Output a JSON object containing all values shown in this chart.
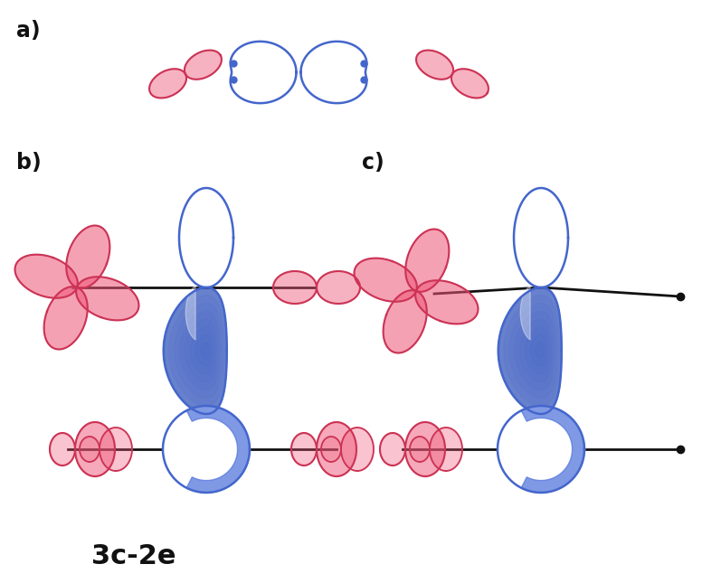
{
  "label_a": "a)",
  "label_b": "b)",
  "label_c": "c)",
  "label_3c2e": "3c-2e",
  "blue": "#4466cc",
  "blue_fill": "#5577dd",
  "blue_light": "#aabbee",
  "red": "#cc3355",
  "red_fill": "#ee5577",
  "red_light": "#ffaabb",
  "dark": "#111111",
  "white": "#ffffff",
  "bg": "#ffffff"
}
